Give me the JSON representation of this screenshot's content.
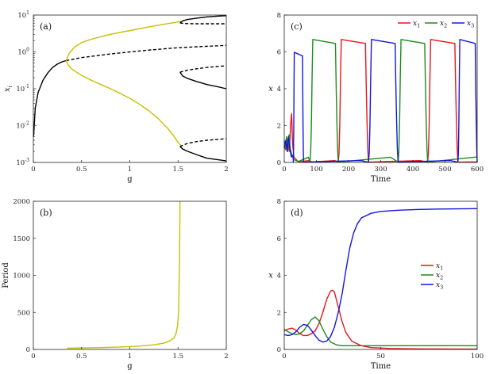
{
  "chart_data": [
    {
      "panel": "a",
      "type": "line",
      "tag": "(a)",
      "xlabel": "g",
      "ylabel": "x_i",
      "yscale": "log",
      "xlim": [
        0,
        2
      ],
      "ylim": [
        0.001,
        10
      ],
      "xticks": [
        0,
        0.5,
        1,
        1.5,
        2
      ],
      "xtick_labels": [
        "0",
        "0.5",
        "1",
        "1.5",
        "2"
      ],
      "ytick_labels": [
        "10^-3",
        "10^-2",
        "10^-1",
        "10^0",
        "10^1"
      ],
      "ytick_values": [
        0.001,
        0.01,
        0.1,
        1,
        10
      ],
      "colors": {
        "stable": "#000000",
        "periodic": "#c8c000"
      },
      "series": [
        {
          "name": "stable-fixed-low-g",
          "style": "solid",
          "color": "#000000",
          "points": [
            [
              0.002,
              0.005
            ],
            [
              0.02,
              0.03
            ],
            [
              0.05,
              0.08
            ],
            [
              0.1,
              0.17
            ],
            [
              0.15,
              0.27
            ],
            [
              0.2,
              0.38
            ],
            [
              0.25,
              0.47
            ],
            [
              0.3,
              0.54
            ],
            [
              0.34,
              0.58
            ]
          ]
        },
        {
          "name": "unstable-fixed-mid",
          "style": "dashed",
          "color": "#000000",
          "points": [
            [
              0.34,
              0.58
            ],
            [
              0.5,
              0.7
            ],
            [
              0.75,
              0.85
            ],
            [
              1.0,
              1.0
            ],
            [
              1.25,
              1.15
            ],
            [
              1.5,
              1.3
            ],
            [
              1.75,
              1.4
            ],
            [
              2.0,
              1.5
            ]
          ]
        },
        {
          "name": "periodic-upper",
          "style": "solid",
          "color": "#c8c000",
          "points": [
            [
              0.34,
              0.58
            ],
            [
              0.37,
              0.9
            ],
            [
              0.42,
              1.3
            ],
            [
              0.5,
              1.8
            ],
            [
              0.6,
              2.2
            ],
            [
              0.75,
              2.8
            ],
            [
              0.9,
              3.4
            ],
            [
              1.05,
              4.0
            ],
            [
              1.2,
              4.8
            ],
            [
              1.35,
              5.6
            ],
            [
              1.5,
              6.5
            ],
            [
              1.53,
              6.8
            ]
          ]
        },
        {
          "name": "periodic-lower",
          "style": "solid",
          "color": "#c8c000",
          "points": [
            [
              0.34,
              0.58
            ],
            [
              0.36,
              0.45
            ],
            [
              0.4,
              0.34
            ],
            [
              0.5,
              0.23
            ],
            [
              0.6,
              0.17
            ],
            [
              0.7,
              0.13
            ],
            [
              0.8,
              0.1
            ],
            [
              0.9,
              0.075
            ],
            [
              1.0,
              0.055
            ],
            [
              1.1,
              0.038
            ],
            [
              1.2,
              0.025
            ],
            [
              1.3,
              0.015
            ],
            [
              1.4,
              0.008
            ],
            [
              1.45,
              0.0055
            ],
            [
              1.5,
              0.0035
            ],
            [
              1.53,
              0.0029
            ]
          ]
        },
        {
          "name": "stable-top-branch",
          "style": "solid",
          "color": "#000000",
          "points": [
            [
              1.52,
              6.1
            ],
            [
              1.55,
              7.0
            ],
            [
              1.6,
              7.6
            ],
            [
              1.7,
              8.3
            ],
            [
              1.8,
              8.9
            ],
            [
              1.9,
              9.3
            ],
            [
              2.0,
              9.6
            ]
          ]
        },
        {
          "name": "unstable-top-branch",
          "style": "dashed",
          "color": "#000000",
          "points": [
            [
              1.52,
              6.1
            ],
            [
              1.56,
              5.9
            ],
            [
              1.6,
              5.85
            ],
            [
              1.7,
              5.8
            ],
            [
              1.8,
              5.8
            ],
            [
              1.9,
              5.8
            ],
            [
              2.0,
              5.8
            ]
          ]
        },
        {
          "name": "stable-mid-branch",
          "style": "solid",
          "color": "#000000",
          "points": [
            [
              1.52,
              0.28
            ],
            [
              1.55,
              0.22
            ],
            [
              1.6,
              0.19
            ],
            [
              1.7,
              0.155
            ],
            [
              1.8,
              0.13
            ],
            [
              1.9,
              0.115
            ],
            [
              2.0,
              0.1
            ]
          ]
        },
        {
          "name": "unstable-mid-branch",
          "style": "dashed",
          "color": "#000000",
          "points": [
            [
              1.52,
              0.28
            ],
            [
              1.56,
              0.3
            ],
            [
              1.6,
              0.32
            ],
            [
              1.7,
              0.35
            ],
            [
              1.8,
              0.38
            ],
            [
              1.9,
              0.4
            ],
            [
              2.0,
              0.42
            ]
          ]
        },
        {
          "name": "unstable-low-branch",
          "style": "dashed",
          "color": "#000000",
          "points": [
            [
              1.52,
              0.0027
            ],
            [
              1.56,
              0.003
            ],
            [
              1.6,
              0.0033
            ],
            [
              1.7,
              0.0037
            ],
            [
              1.8,
              0.004
            ],
            [
              1.9,
              0.0042
            ],
            [
              2.0,
              0.0044
            ]
          ]
        },
        {
          "name": "stable-low-branch",
          "style": "solid",
          "color": "#000000",
          "points": [
            [
              1.52,
              0.0027
            ],
            [
              1.55,
              0.0023
            ],
            [
              1.6,
              0.002
            ],
            [
              1.7,
              0.0016
            ],
            [
              1.8,
              0.0013
            ],
            [
              1.9,
              0.0012
            ],
            [
              2.0,
              0.0011
            ]
          ]
        }
      ]
    },
    {
      "panel": "b",
      "type": "line",
      "tag": "(b)",
      "xlabel": "g",
      "ylabel": "Period",
      "xlim": [
        0,
        2
      ],
      "ylim": [
        0,
        2000
      ],
      "xticks": [
        0,
        0.5,
        1,
        1.5,
        2
      ],
      "xtick_labels": [
        "0",
        "0.5",
        "1",
        "1.5",
        "2"
      ],
      "yticks": [
        0,
        500,
        1000,
        1500,
        2000
      ],
      "ytick_labels": [
        "0",
        "500",
        "1000",
        "1500",
        "2000"
      ],
      "series": [
        {
          "name": "period",
          "style": "solid",
          "color": "#c8c000",
          "points": [
            [
              0.35,
              17
            ],
            [
              0.5,
              20
            ],
            [
              0.7,
              25
            ],
            [
              0.9,
              33
            ],
            [
              1.1,
              45
            ],
            [
              1.25,
              62
            ],
            [
              1.35,
              85
            ],
            [
              1.42,
              118
            ],
            [
              1.46,
              160
            ],
            [
              1.48,
              220
            ],
            [
              1.495,
              320
            ],
            [
              1.505,
              500
            ],
            [
              1.51,
              800
            ],
            [
              1.515,
              1200
            ],
            [
              1.518,
              1600
            ],
            [
              1.52,
              2000
            ]
          ]
        }
      ]
    },
    {
      "panel": "c",
      "type": "line",
      "tag": "(c)",
      "xlabel": "Time",
      "ylabel": "x",
      "xlim": [
        0,
        600
      ],
      "ylim": [
        0,
        8
      ],
      "xticks": [
        0,
        100,
        200,
        300,
        400,
        500,
        600
      ],
      "xtick_labels": [
        "0",
        "100",
        "200",
        "300",
        "400",
        "500",
        "600"
      ],
      "yticks": [
        0,
        2,
        4,
        6,
        8
      ],
      "ytick_labels": [
        "0",
        "2",
        "4",
        "6",
        "8"
      ],
      "legend": [
        "x_1",
        "x_2",
        "x_3"
      ],
      "legend_sub": [
        "1",
        "2",
        "3"
      ],
      "legend_position": "top-right",
      "colors": [
        "#e8161b",
        "#1c8a1c",
        "#1515e0"
      ],
      "pulses": [
        {
          "series": 2,
          "start": 28,
          "end": 60,
          "peak": 6.0
        },
        {
          "series": 1,
          "start": 80,
          "end": 168,
          "peak": 6.7
        },
        {
          "series": 0,
          "start": 168,
          "end": 262,
          "peak": 6.7
        },
        {
          "series": 2,
          "start": 262,
          "end": 354,
          "peak": 6.7
        },
        {
          "series": 1,
          "start": 354,
          "end": 446,
          "peak": 6.7
        },
        {
          "series": 0,
          "start": 446,
          "end": 540,
          "peak": 6.7
        },
        {
          "series": 2,
          "start": 540,
          "end": 600,
          "peak": 6.7
        }
      ],
      "transient": [
        {
          "series": 0,
          "points": [
            [
              0,
              0.9
            ],
            [
              4,
              0.7
            ],
            [
              8,
              1.1
            ],
            [
              12,
              1.3
            ],
            [
              16,
              0.6
            ],
            [
              20,
              2.1
            ],
            [
              23,
              2.65
            ],
            [
              26,
              1.0
            ],
            [
              30,
              0.3
            ],
            [
              40,
              0.1
            ],
            [
              80,
              0.05
            ]
          ]
        },
        {
          "series": 1,
          "points": [
            [
              0,
              1.2
            ],
            [
              3,
              0.8
            ],
            [
              7,
              1.4
            ],
            [
              11,
              0.6
            ],
            [
              15,
              1.5
            ],
            [
              19,
              0.7
            ],
            [
              24,
              0.4
            ],
            [
              30,
              0.15
            ],
            [
              40,
              0.08
            ],
            [
              80,
              0.05
            ]
          ]
        },
        {
          "series": 2,
          "points": [
            [
              0,
              0.8
            ],
            [
              5,
              1.2
            ],
            [
              9,
              0.6
            ],
            [
              13,
              1.4
            ],
            [
              17,
              0.8
            ],
            [
              22,
              0.3
            ],
            [
              28,
              0.4
            ]
          ]
        }
      ],
      "baseline_max": 0.3
    },
    {
      "panel": "d",
      "type": "line",
      "tag": "(d)",
      "xlabel": "Time",
      "ylabel": "x",
      "xlim": [
        0,
        100
      ],
      "ylim": [
        0,
        8
      ],
      "xticks": [
        0,
        50,
        100
      ],
      "xtick_labels": [
        "0",
        "50",
        "100"
      ],
      "yticks": [
        0,
        2,
        4,
        6,
        8
      ],
      "ytick_labels": [
        "0",
        "2",
        "4",
        "6",
        "8"
      ],
      "legend": [
        "x_1",
        "x_2",
        "x_3"
      ],
      "legend_sub": [
        "1",
        "2",
        "3"
      ],
      "legend_position": "center-right",
      "colors": [
        "#e8161b",
        "#1c8a1c",
        "#1515e0"
      ],
      "series": [
        {
          "name": "x1",
          "color": "#e8161b",
          "points": [
            [
              0,
              1.0
            ],
            [
              2,
              1.1
            ],
            [
              4,
              1.15
            ],
            [
              6,
              1.05
            ],
            [
              8,
              0.85
            ],
            [
              10,
              0.75
            ],
            [
              12,
              0.75
            ],
            [
              14,
              0.85
            ],
            [
              16,
              1.0
            ],
            [
              18,
              1.4
            ],
            [
              20,
              2.0
            ],
            [
              22,
              2.7
            ],
            [
              24,
              3.15
            ],
            [
              25,
              3.2
            ],
            [
              26,
              3.1
            ],
            [
              28,
              2.3
            ],
            [
              30,
              1.5
            ],
            [
              32,
              0.9
            ],
            [
              35,
              0.45
            ],
            [
              40,
              0.2
            ],
            [
              45,
              0.1
            ],
            [
              55,
              0.05
            ],
            [
              70,
              0.03
            ],
            [
              100,
              0.02
            ]
          ]
        },
        {
          "name": "x2",
          "color": "#1c8a1c",
          "points": [
            [
              0,
              1.1
            ],
            [
              2,
              0.95
            ],
            [
              4,
              0.85
            ],
            [
              6,
              0.8
            ],
            [
              8,
              0.85
            ],
            [
              10,
              1.0
            ],
            [
              12,
              1.3
            ],
            [
              14,
              1.6
            ],
            [
              16,
              1.75
            ],
            [
              18,
              1.55
            ],
            [
              20,
              1.1
            ],
            [
              22,
              0.7
            ],
            [
              24,
              0.4
            ],
            [
              27,
              0.25
            ],
            [
              30,
              0.2
            ],
            [
              40,
              0.2
            ],
            [
              60,
              0.2
            ],
            [
              80,
              0.2
            ],
            [
              100,
              0.2
            ]
          ]
        },
        {
          "name": "x3",
          "color": "#1515e0",
          "points": [
            [
              0,
              0.8
            ],
            [
              2,
              0.75
            ],
            [
              4,
              0.8
            ],
            [
              6,
              0.95
            ],
            [
              8,
              1.2
            ],
            [
              10,
              1.35
            ],
            [
              12,
              1.3
            ],
            [
              14,
              1.05
            ],
            [
              16,
              0.75
            ],
            [
              18,
              0.5
            ],
            [
              20,
              0.4
            ],
            [
              22,
              0.45
            ],
            [
              24,
              0.7
            ],
            [
              26,
              1.2
            ],
            [
              28,
              2.0
            ],
            [
              30,
              3.0
            ],
            [
              32,
              4.3
            ],
            [
              34,
              5.5
            ],
            [
              36,
              6.3
            ],
            [
              38,
              6.8
            ],
            [
              40,
              7.1
            ],
            [
              45,
              7.35
            ],
            [
              50,
              7.45
            ],
            [
              60,
              7.52
            ],
            [
              70,
              7.56
            ],
            [
              80,
              7.58
            ],
            [
              100,
              7.6
            ]
          ]
        }
      ]
    }
  ]
}
